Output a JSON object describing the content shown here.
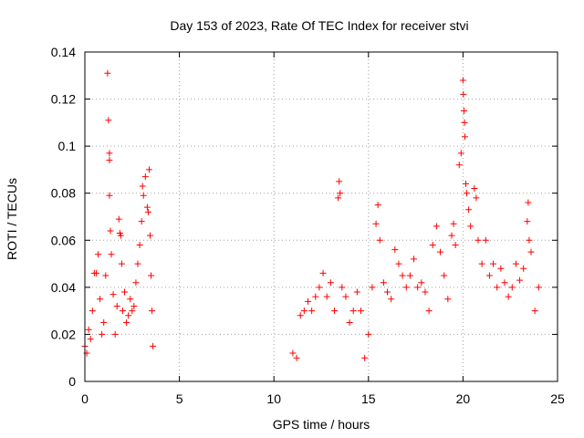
{
  "chart_data": {
    "type": "scatter",
    "title": "Day 153 of 2023, Rate Of TEC Index for receiver stvi",
    "xlabel": "GPS time / hours",
    "ylabel": "ROTI / TECUs",
    "xlim": [
      0,
      25
    ],
    "ylim": [
      0,
      0.14
    ],
    "xticks": [
      0,
      5,
      10,
      15,
      20,
      25
    ],
    "yticks": [
      0,
      0.02,
      0.04,
      0.06,
      0.08,
      0.1,
      0.12,
      0.14
    ],
    "xtick_labels": [
      "0",
      "5",
      "10",
      "15",
      "20",
      "25"
    ],
    "ytick_labels": [
      "0",
      "0.02",
      "0.04",
      "0.06",
      "0.08",
      "0.1",
      "0.12",
      "0.14"
    ],
    "grid": true,
    "marker": "+",
    "marker_color": "#ff0000",
    "series": [
      {
        "points": [
          [
            0.0,
            0.015
          ],
          [
            0.1,
            0.012
          ],
          [
            0.2,
            0.022
          ],
          [
            0.3,
            0.018
          ],
          [
            0.4,
            0.03
          ],
          [
            0.5,
            0.046
          ],
          [
            0.6,
            0.046
          ],
          [
            0.7,
            0.054
          ],
          [
            0.8,
            0.035
          ],
          [
            0.9,
            0.02
          ],
          [
            1.0,
            0.025
          ],
          [
            1.1,
            0.045
          ],
          [
            1.2,
            0.131
          ],
          [
            1.25,
            0.111
          ],
          [
            1.3,
            0.097
          ],
          [
            1.3,
            0.094
          ],
          [
            1.3,
            0.079
          ],
          [
            1.35,
            0.064
          ],
          [
            1.4,
            0.054
          ],
          [
            1.5,
            0.037
          ],
          [
            1.6,
            0.02
          ],
          [
            1.7,
            0.032
          ],
          [
            1.8,
            0.069
          ],
          [
            1.85,
            0.063
          ],
          [
            1.9,
            0.062
          ],
          [
            1.95,
            0.05
          ],
          [
            2.0,
            0.03
          ],
          [
            2.1,
            0.038
          ],
          [
            2.2,
            0.025
          ],
          [
            2.3,
            0.028
          ],
          [
            2.4,
            0.035
          ],
          [
            2.5,
            0.03
          ],
          [
            2.6,
            0.032
          ],
          [
            2.7,
            0.042
          ],
          [
            2.8,
            0.05
          ],
          [
            2.9,
            0.058
          ],
          [
            3.0,
            0.068
          ],
          [
            3.05,
            0.083
          ],
          [
            3.1,
            0.079
          ],
          [
            3.2,
            0.087
          ],
          [
            3.3,
            0.074
          ],
          [
            3.35,
            0.072
          ],
          [
            3.4,
            0.09
          ],
          [
            3.45,
            0.062
          ],
          [
            3.5,
            0.045
          ],
          [
            3.55,
            0.03
          ],
          [
            3.6,
            0.015
          ],
          [
            11.0,
            0.012
          ],
          [
            11.2,
            0.01
          ],
          [
            11.4,
            0.028
          ],
          [
            11.6,
            0.03
          ],
          [
            11.8,
            0.034
          ],
          [
            12.0,
            0.03
          ],
          [
            12.2,
            0.036
          ],
          [
            12.4,
            0.04
          ],
          [
            12.6,
            0.046
          ],
          [
            12.8,
            0.036
          ],
          [
            13.0,
            0.042
          ],
          [
            13.2,
            0.03
          ],
          [
            13.4,
            0.078
          ],
          [
            13.45,
            0.085
          ],
          [
            13.5,
            0.08
          ],
          [
            13.6,
            0.04
          ],
          [
            13.8,
            0.036
          ],
          [
            14.0,
            0.025
          ],
          [
            14.2,
            0.03
          ],
          [
            14.4,
            0.038
          ],
          [
            14.6,
            0.03
          ],
          [
            14.8,
            0.01
          ],
          [
            15.0,
            0.02
          ],
          [
            15.2,
            0.04
          ],
          [
            15.4,
            0.067
          ],
          [
            15.5,
            0.075
          ],
          [
            15.6,
            0.06
          ],
          [
            15.8,
            0.042
          ],
          [
            16.0,
            0.038
          ],
          [
            16.2,
            0.035
          ],
          [
            16.4,
            0.056
          ],
          [
            16.6,
            0.05
          ],
          [
            16.8,
            0.045
          ],
          [
            17.0,
            0.04
          ],
          [
            17.2,
            0.045
          ],
          [
            17.4,
            0.052
          ],
          [
            17.6,
            0.04
          ],
          [
            17.8,
            0.042
          ],
          [
            18.0,
            0.038
          ],
          [
            18.2,
            0.03
          ],
          [
            18.4,
            0.058
          ],
          [
            18.6,
            0.066
          ],
          [
            18.8,
            0.055
          ],
          [
            19.0,
            0.045
          ],
          [
            19.2,
            0.035
          ],
          [
            19.4,
            0.062
          ],
          [
            19.5,
            0.067
          ],
          [
            19.6,
            0.058
          ],
          [
            19.8,
            0.092
          ],
          [
            19.9,
            0.097
          ],
          [
            20.0,
            0.128
          ],
          [
            20.02,
            0.122
          ],
          [
            20.05,
            0.115
          ],
          [
            20.08,
            0.11
          ],
          [
            20.1,
            0.104
          ],
          [
            20.15,
            0.084
          ],
          [
            20.2,
            0.08
          ],
          [
            20.3,
            0.073
          ],
          [
            20.4,
            0.066
          ],
          [
            20.6,
            0.082
          ],
          [
            20.7,
            0.078
          ],
          [
            20.8,
            0.06
          ],
          [
            21.0,
            0.05
          ],
          [
            21.2,
            0.06
          ],
          [
            21.4,
            0.045
          ],
          [
            21.6,
            0.05
          ],
          [
            21.8,
            0.04
          ],
          [
            22.0,
            0.048
          ],
          [
            22.2,
            0.042
          ],
          [
            22.4,
            0.036
          ],
          [
            22.6,
            0.04
          ],
          [
            22.8,
            0.05
          ],
          [
            23.0,
            0.043
          ],
          [
            23.2,
            0.048
          ],
          [
            23.4,
            0.068
          ],
          [
            23.45,
            0.076
          ],
          [
            23.5,
            0.06
          ],
          [
            23.6,
            0.055
          ],
          [
            23.8,
            0.03
          ],
          [
            24.0,
            0.04
          ]
        ]
      }
    ]
  }
}
